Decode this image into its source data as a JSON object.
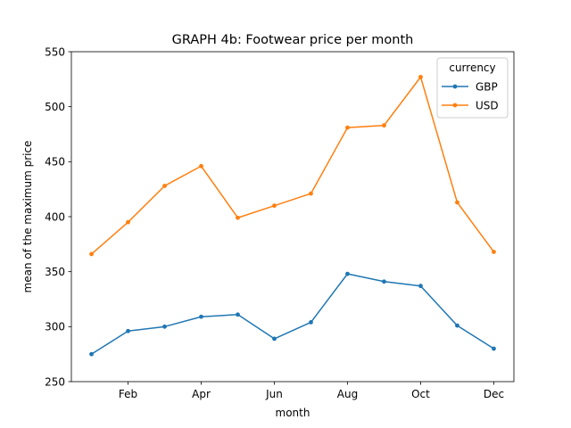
{
  "chart_data": {
    "type": "line",
    "title": "GRAPH 4b: Footwear price per month",
    "xlabel": "month",
    "ylabel": "mean of the maximum price",
    "x": [
      1,
      2,
      3,
      4,
      5,
      6,
      7,
      8,
      9,
      10,
      11,
      12
    ],
    "xlim": [
      0.45,
      12.55
    ],
    "ylim": [
      250,
      550
    ],
    "x_ticks": [
      {
        "value": 2,
        "label": "Feb"
      },
      {
        "value": 4,
        "label": "Apr"
      },
      {
        "value": 6,
        "label": "Jun"
      },
      {
        "value": 8,
        "label": "Aug"
      },
      {
        "value": 10,
        "label": "Oct"
      },
      {
        "value": 12,
        "label": "Dec"
      }
    ],
    "y_ticks": [
      250,
      300,
      350,
      400,
      450,
      500,
      550
    ],
    "grid": false,
    "legend": {
      "title": "currency",
      "placement": "top-right"
    },
    "series": [
      {
        "name": "GBP",
        "color": "#1f77b4",
        "values": [
          275,
          296,
          300,
          309,
          311,
          289,
          304,
          348,
          341,
          337,
          301,
          280
        ]
      },
      {
        "name": "USD",
        "color": "#ff7f0e",
        "values": [
          366,
          395,
          428,
          446,
          399,
          410,
          421,
          481,
          483,
          527,
          413,
          368
        ]
      }
    ]
  }
}
